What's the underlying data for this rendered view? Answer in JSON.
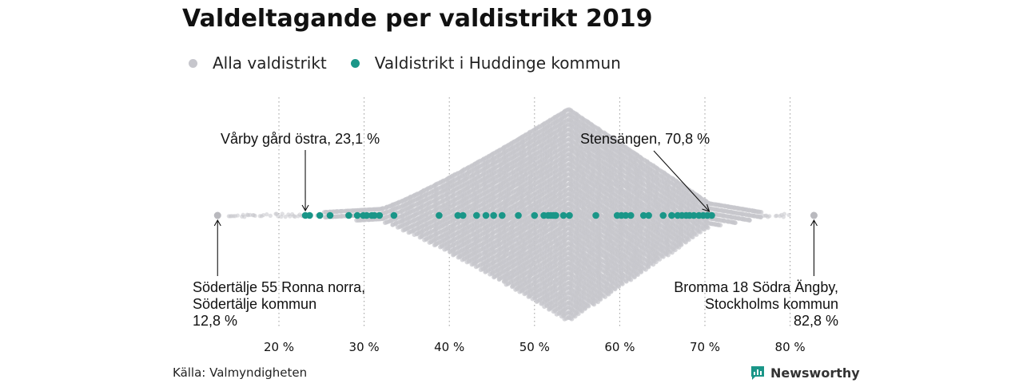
{
  "chart_data": {
    "type": "scatter",
    "subtype": "beeswarm",
    "title": "Valdeltagande per valdistrikt 2019",
    "xlabel": "",
    "ylabel": "",
    "xlim": [
      12,
      85
    ],
    "x_ticks": [
      20,
      30,
      40,
      50,
      60,
      70,
      80
    ],
    "x_tick_labels": [
      "20 %",
      "30 %",
      "40 %",
      "50 %",
      "60 %",
      "70 %",
      "80 %"
    ],
    "grid": "vertical dotted",
    "legend_position": "top-left",
    "series": [
      {
        "name": "Alla valdistrikt",
        "color": "#c6c6cc",
        "distribution_peak": 54,
        "min": 12.8,
        "max": 82.8
      },
      {
        "name": "Valdistrikt i Huddinge kommun",
        "color": "#1a9688",
        "values": [
          23.1,
          23.6,
          24.8,
          26.0,
          28.2,
          29.2,
          29.9,
          30.3,
          30.9,
          31.2,
          31.8,
          33.5,
          38.8,
          41.0,
          41.6,
          43.2,
          44.3,
          45.2,
          46.2,
          48.1,
          50.0,
          51.1,
          51.6,
          51.9,
          52.2,
          52.4,
          52.5,
          53.4,
          54.1,
          57.2,
          59.7,
          60.2,
          60.7,
          61.3,
          62.8,
          63.4,
          65.1,
          66.1,
          66.8,
          67.3,
          67.8,
          68.2,
          68.7,
          69.3,
          69.8,
          70.3,
          70.8
        ]
      }
    ],
    "annotations": [
      {
        "label": "Vårby gård östra, 23,1 %",
        "x": 23.1
      },
      {
        "label": "Stensängen, 70,8 %",
        "x": 70.8
      },
      {
        "label_lines": [
          "Södertälje 55 Ronna norra,",
          "Södertälje kommun",
          "12,8 %"
        ],
        "x": 12.8
      },
      {
        "label_lines": [
          "Bromma 18 Södra Ängby,",
          "Stockholms kommun",
          "82,8 %"
        ],
        "x": 82.8
      }
    ],
    "source": "Källa: Valmyndigheten",
    "brand": "Newsworthy"
  }
}
